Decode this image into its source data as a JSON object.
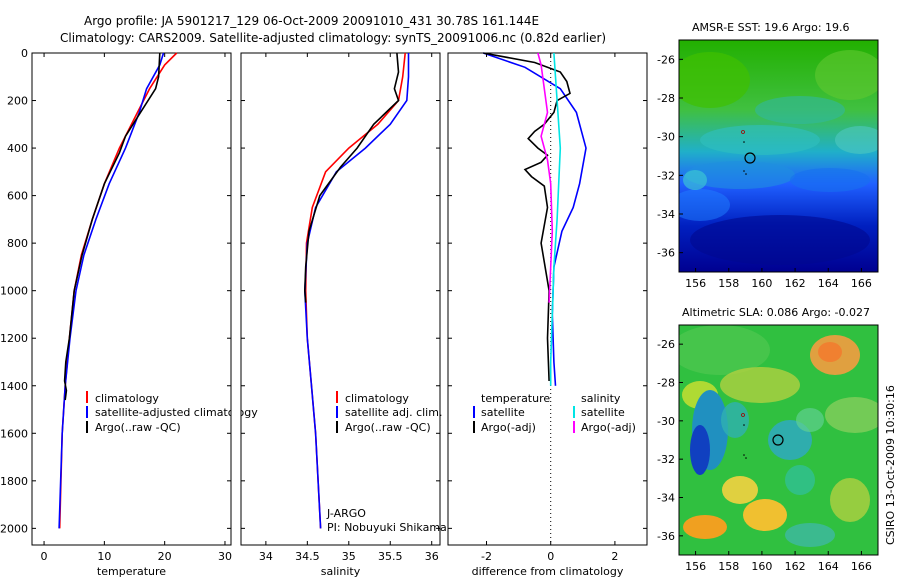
{
  "header": {
    "line1": "Argo profile: JA 5901217_129 06-Oct-2009 20091010_431 30.78S 161.144E",
    "line2": "Climatology: CARS2009. Satellite-adjusted climatology: synTS_20091006.nc (0.82d earlier)"
  },
  "colors": {
    "climatology": "#ff0000",
    "satellite": "#0000ff",
    "argo": "#000000",
    "cyan": "#00e5e5",
    "magenta": "#ff00ff"
  },
  "chart_data": [
    {
      "id": "temperature",
      "type": "line",
      "xlabel": "temperature",
      "xlim": [
        -2,
        31
      ],
      "xticks": [
        "0",
        "10",
        "20",
        "30"
      ],
      "xtick_values": [
        0,
        10,
        20,
        30
      ],
      "ylim": [
        0,
        2070
      ],
      "yticks": [
        "0",
        "200",
        "400",
        "600",
        "800",
        "1000",
        "1200",
        "1400",
        "1600",
        "1800",
        "2000"
      ],
      "ytick_values": [
        0,
        200,
        400,
        600,
        800,
        1000,
        1200,
        1400,
        1600,
        1800,
        2000
      ],
      "series": [
        {
          "name": "climatology",
          "color": "#ff0000",
          "x": [
            22,
            20,
            17.5,
            15.5,
            12.5,
            10,
            8,
            6.2,
            5,
            4.2,
            3.5,
            3,
            2.6
          ],
          "y": [
            0,
            50,
            150,
            250,
            400,
            550,
            700,
            850,
            1000,
            1200,
            1400,
            1600,
            2000
          ]
        },
        {
          "name": "satellite-adjusted climatology",
          "color": "#0000ff",
          "x": [
            19.8,
            19.2,
            17,
            15.8,
            13.5,
            10.8,
            8.6,
            6.6,
            5.3,
            4.3,
            3.5,
            3,
            2.5
          ],
          "y": [
            0,
            50,
            150,
            250,
            400,
            550,
            700,
            850,
            1000,
            1200,
            1400,
            1600,
            2000
          ]
        },
        {
          "name": "Argo(..raw -QC)",
          "color": "#000000",
          "x": [
            19.2,
            19,
            18.5,
            16,
            13.5,
            12.5,
            10,
            8,
            6.3,
            5,
            4.2,
            3.6,
            3.4,
            3.7,
            3.5
          ],
          "y": [
            0,
            100,
            150,
            250,
            350,
            420,
            550,
            700,
            850,
            1000,
            1200,
            1300,
            1380,
            1420,
            1460
          ]
        }
      ],
      "legend": [
        "climatology",
        "satellite-adjusted climatology",
        "Argo(..raw -QC)"
      ]
    },
    {
      "id": "salinity",
      "type": "line",
      "xlabel": "salinity",
      "xlim": [
        33.7,
        36.1
      ],
      "xticks": [
        "34",
        "34.5",
        "35",
        "35.5",
        "36"
      ],
      "xtick_values": [
        34,
        34.5,
        35,
        35.5,
        36
      ],
      "ylim": [
        0,
        2070
      ],
      "series": [
        {
          "name": "climatology",
          "color": "#ff0000",
          "x": [
            35.68,
            35.65,
            35.6,
            35.35,
            35.0,
            34.72,
            34.56,
            34.49,
            34.48,
            34.5,
            34.55,
            34.6,
            34.66
          ],
          "y": [
            0,
            100,
            200,
            300,
            400,
            500,
            650,
            800,
            1000,
            1200,
            1400,
            1600,
            2000
          ]
        },
        {
          "name": "satellite adj. clim.",
          "color": "#0000ff",
          "x": [
            35.72,
            35.72,
            35.7,
            35.5,
            35.2,
            34.85,
            34.6,
            34.5,
            34.47,
            34.5,
            34.55,
            34.6,
            34.66
          ],
          "y": [
            0,
            100,
            200,
            300,
            400,
            500,
            650,
            800,
            1000,
            1200,
            1400,
            1600,
            2000
          ]
        },
        {
          "name": "Argo(..raw -QC)",
          "color": "#000000",
          "x": [
            35.58,
            35.6,
            35.55,
            35.6,
            35.3,
            35.1,
            34.9,
            34.65,
            34.52,
            34.48,
            34.47,
            34.48
          ],
          "y": [
            0,
            80,
            150,
            200,
            300,
            400,
            480,
            600,
            750,
            900,
            1000,
            1050
          ]
        }
      ],
      "legend": [
        "climatology",
        "satellite adj. clim.",
        "Argo(..raw -QC)"
      ],
      "annotation": [
        "J-ARGO",
        "PI: Nobuyuki Shikama"
      ]
    },
    {
      "id": "difference",
      "type": "line",
      "xlabel": "difference from climatology",
      "xlim": [
        -3.2,
        3.0
      ],
      "xticks": [
        "-2",
        "0",
        "2"
      ],
      "xtick_values": [
        -2,
        0,
        2
      ],
      "ylim": [
        0,
        2070
      ],
      "series": [
        {
          "name": "temperature satellite",
          "color": "#0000ff",
          "x": [
            -2.1,
            -0.8,
            0.3,
            0.8,
            1.1,
            0.9,
            0.7,
            0.35,
            0.1,
            0.05,
            0.1,
            0.15
          ],
          "y": [
            0,
            60,
            150,
            250,
            400,
            550,
            650,
            750,
            900,
            1100,
            1300,
            1400
          ]
        },
        {
          "name": "temperature Argo(-adj)",
          "color": "#000000",
          "x": [
            -2.1,
            -0.5,
            0.3,
            0.5,
            0.6,
            0.2,
            0.1,
            -0.2,
            -0.5,
            -0.7,
            -0.4,
            -0.1,
            -0.3,
            -0.8,
            -0.6,
            -0.2,
            -0.1,
            -0.3,
            -0.05,
            -0.1,
            -0.05
          ],
          "y": [
            0,
            40,
            80,
            120,
            170,
            200,
            250,
            300,
            330,
            360,
            400,
            430,
            460,
            490,
            520,
            560,
            650,
            800,
            1000,
            1200,
            1380
          ]
        },
        {
          "name": "salinity satellite",
          "color": "#00e5e5",
          "x": [
            0.1,
            0.15,
            0.2,
            0.25,
            0.3,
            0.25,
            0.2,
            0.1,
            0.05,
            0.0,
            0.0
          ],
          "y": [
            0,
            100,
            200,
            300,
            400,
            550,
            700,
            900,
            1100,
            1300,
            1400
          ]
        },
        {
          "name": "salinity Argo(-adj)",
          "color": "#ff00ff",
          "x": [
            -0.4,
            -0.3,
            -0.2,
            -0.1,
            -0.3,
            -0.1,
            0.0,
            0.05,
            0.0,
            -0.05
          ],
          "y": [
            0,
            50,
            150,
            250,
            350,
            450,
            550,
            750,
            900,
            1050
          ]
        }
      ],
      "legend_temperature": [
        "temperature",
        "satellite",
        "Argo(-adj)"
      ],
      "legend_salinity": [
        "salinity",
        "satellite",
        "Argo(-adj)"
      ]
    },
    {
      "id": "sst-map",
      "type": "heatmap",
      "title": "AMSR-E SST: 19.6 Argo: 19.6",
      "xticks": [
        "156",
        "158",
        "160",
        "162",
        "164",
        "166"
      ],
      "xtick_values": [
        156,
        158,
        160,
        162,
        164,
        166
      ],
      "xlim": [
        155,
        167
      ],
      "yticks": [
        "-26",
        "-28",
        "-30",
        "-32",
        "-34",
        "-36"
      ],
      "ytick_values": [
        -26,
        -28,
        -30,
        -32,
        -34,
        -36
      ],
      "ylim": [
        -37,
        -25
      ],
      "argo_position": [
        161.144,
        -30.78
      ]
    },
    {
      "id": "sla-map",
      "type": "heatmap",
      "title": "Altimetric SLA: 0.086 Argo: -0.027",
      "xticks": [
        "156",
        "158",
        "160",
        "162",
        "164",
        "166"
      ],
      "xtick_values": [
        156,
        158,
        160,
        162,
        164,
        166
      ],
      "xlim": [
        155,
        167
      ],
      "yticks": [
        "-26",
        "-28",
        "-30",
        "-32",
        "-34",
        "-36"
      ],
      "ytick_values": [
        -26,
        -28,
        -30,
        -32,
        -34,
        -36
      ],
      "ylim": [
        -37,
        -25
      ],
      "argo_position": [
        161.144,
        -30.78
      ]
    }
  ],
  "side_label": "CSIRO 13-Oct-2009 10:30:16"
}
